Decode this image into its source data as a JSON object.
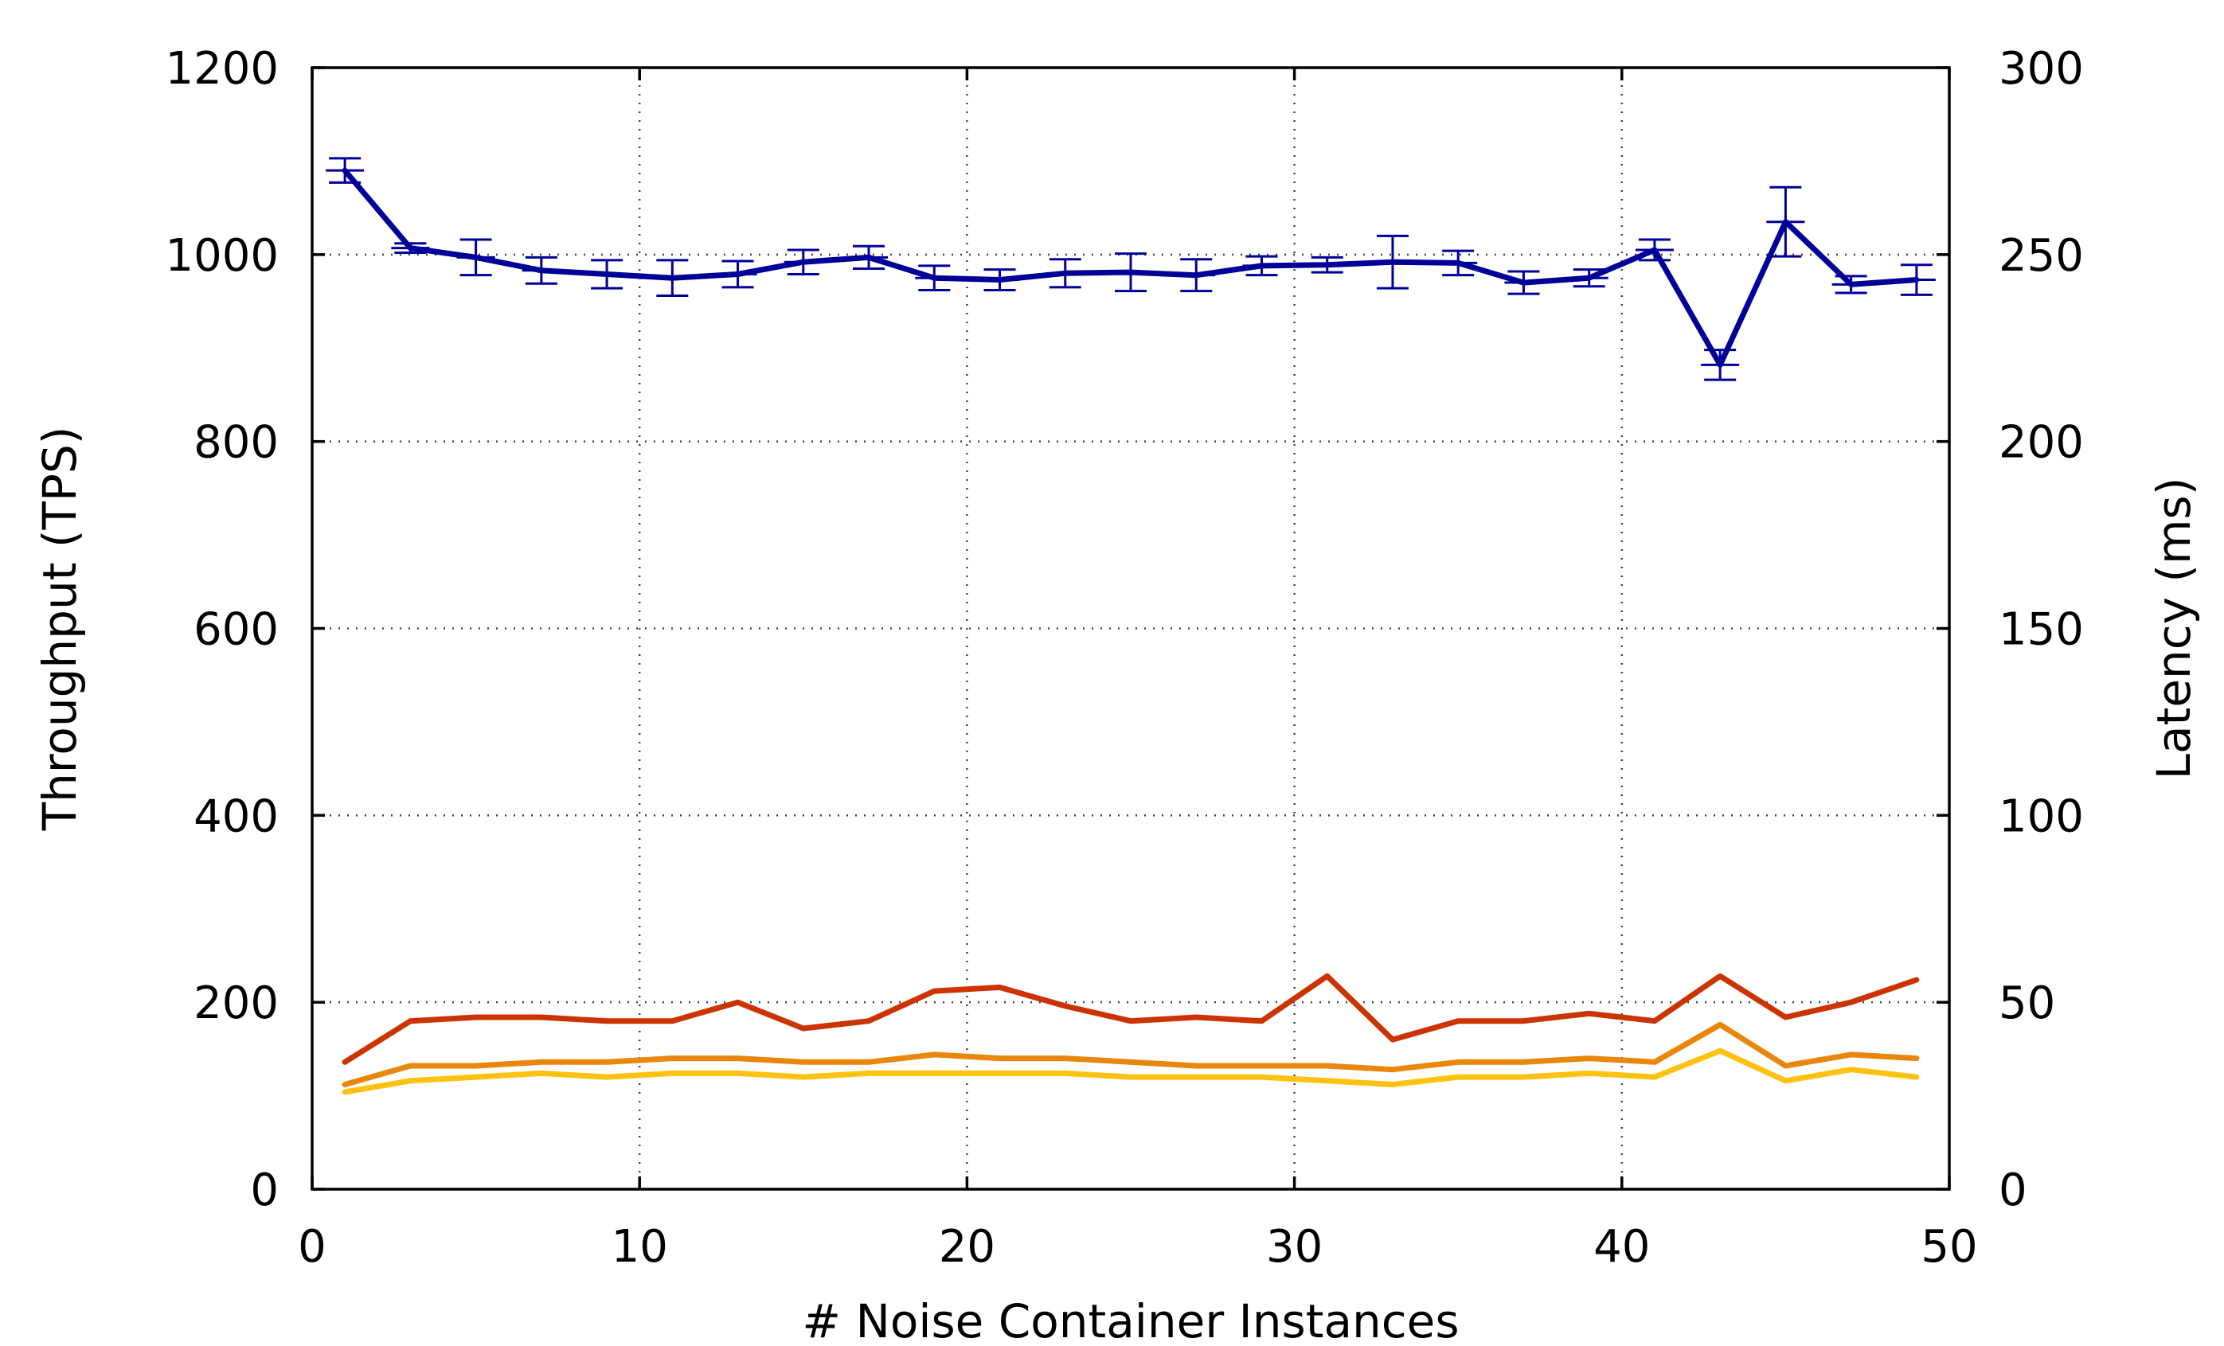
{
  "chart_data": {
    "type": "line",
    "title": "",
    "xlabel": "# Noise Container Instances",
    "ylabel": "Throughput (TPS)",
    "y2label": "Latency (ms)",
    "xlim": [
      0,
      50
    ],
    "ylim": [
      0,
      1200
    ],
    "y2lim": [
      0,
      300
    ],
    "grid": true,
    "x_ticks": [
      "0",
      "10",
      "20",
      "30",
      "40",
      "50"
    ],
    "y_ticks": [
      "0",
      "200",
      "400",
      "600",
      "800",
      "1000",
      "1200"
    ],
    "y2_ticks": [
      "0",
      "50",
      "100",
      "150",
      "200",
      "250",
      "300"
    ],
    "x": [
      1,
      3,
      5,
      7,
      9,
      11,
      13,
      15,
      17,
      19,
      21,
      23,
      25,
      27,
      29,
      31,
      33,
      35,
      37,
      39,
      41,
      43,
      45,
      47,
      49
    ],
    "series": [
      {
        "axis": "left",
        "color": "#000099",
        "values": [
          1090,
          1007,
          997,
          983,
          979,
          975,
          979,
          992,
          997,
          975,
          973,
          980,
          981,
          978,
          988,
          989,
          992,
          991,
          970,
          975,
          1005,
          882,
          1035,
          968,
          973
        ],
        "error_low": [
          1077,
          1002,
          978,
          969,
          964,
          956,
          965,
          979,
          985,
          962,
          962,
          965,
          961,
          961,
          978,
          981,
          964,
          978,
          958,
          966,
          994,
          866,
          998,
          959,
          957
        ],
        "error_high": [
          1103,
          1012,
          1016,
          997,
          994,
          994,
          993,
          1005,
          1009,
          988,
          984,
          995,
          1001,
          995,
          998,
          997,
          1020,
          1004,
          982,
          984,
          1016,
          898,
          1072,
          977,
          989
        ]
      },
      {
        "axis": "right",
        "color": "#cc3300",
        "values": [
          34,
          45,
          46,
          46,
          45,
          45,
          50,
          43,
          45,
          53,
          54,
          49,
          45,
          46,
          45,
          57,
          40,
          45,
          45,
          47,
          45,
          57,
          46,
          50,
          56
        ]
      },
      {
        "axis": "right",
        "color": "#e8870b",
        "values": [
          28,
          33,
          33,
          34,
          34,
          35,
          35,
          34,
          34,
          36,
          35,
          35,
          34,
          33,
          33,
          33,
          32,
          34,
          34,
          35,
          34,
          44,
          33,
          36,
          35
        ]
      },
      {
        "axis": "right",
        "color": "#ffc20e",
        "values": [
          26,
          29,
          30,
          31,
          30,
          31,
          31,
          30,
          31,
          31,
          31,
          31,
          30,
          30,
          30,
          29,
          28,
          30,
          30,
          31,
          30,
          37,
          29,
          32,
          30
        ]
      }
    ]
  }
}
